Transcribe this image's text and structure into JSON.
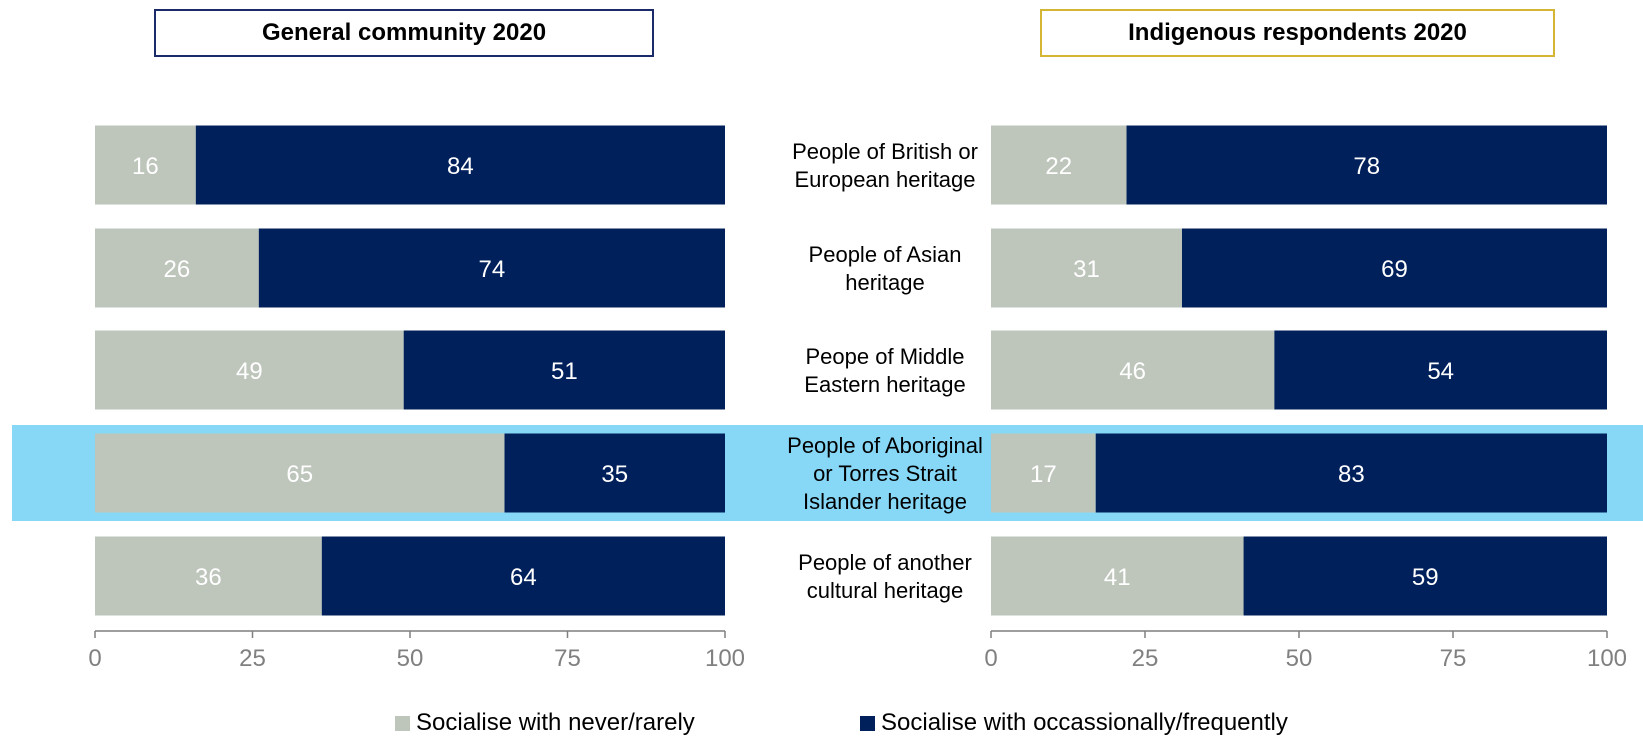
{
  "colors": {
    "never_rarely": "#bec6bc",
    "occasionally_frequently": "#00205b",
    "highlight": "#87d8f7",
    "left_title_border": "#1b2a6b",
    "right_title_border": "#d4b634",
    "axis": "#7f7f7f",
    "tick_label": "#808080"
  },
  "titles": {
    "left": "General community 2020",
    "right": "Indigenous respondents 2020"
  },
  "legend": {
    "never_rarely": "Socialise with never/rarely",
    "occasionally_frequently": "Socialise with occassionally/frequently"
  },
  "chart_data": [
    {
      "type": "bar",
      "orientation": "horizontal",
      "stacked": true,
      "title": "General community 2020",
      "categories": [
        "People of British or European heritage",
        "People of Asian heritage",
        "Peope of Middle Eastern heritage",
        "People of Aboriginal or Torres Strait Islander heritage",
        "People of another cultural heritage"
      ],
      "series": [
        {
          "name": "Socialise with never/rarely",
          "values": [
            16,
            26,
            49,
            65,
            36
          ]
        },
        {
          "name": "Socialise with occassionally/frequently",
          "values": [
            84,
            74,
            51,
            35,
            64
          ]
        }
      ],
      "xlim": [
        0,
        100
      ],
      "xticks": [
        "0",
        "25",
        "50",
        "75",
        "100"
      ],
      "highlighted_category": 3,
      "legend_position": "bottom",
      "grid": false
    },
    {
      "type": "bar",
      "orientation": "horizontal",
      "stacked": true,
      "title": "Indigenous respondents 2020",
      "categories": [
        "People of British or European heritage",
        "People of Asian heritage",
        "Peope of Middle Eastern heritage",
        "People of Aboriginal or Torres Strait Islander heritage",
        "People of another cultural heritage"
      ],
      "category_label_lines": [
        [
          "People of British or",
          "European heritage"
        ],
        [
          "People of Asian",
          "heritage"
        ],
        [
          "Peope of Middle",
          "Eastern heritage"
        ],
        [
          "People of Aboriginal",
          "or Torres Strait",
          "Islander heritage"
        ],
        [
          "People of another",
          "cultural heritage"
        ]
      ],
      "series": [
        {
          "name": "Socialise with never/rarely",
          "values": [
            22,
            31,
            46,
            17,
            41
          ]
        },
        {
          "name": "Socialise with occassionally/frequently",
          "values": [
            78,
            69,
            54,
            83,
            59
          ]
        }
      ],
      "xlim": [
        0,
        100
      ],
      "xticks": [
        "0",
        "25",
        "50",
        "75",
        "100"
      ],
      "highlighted_category": 3,
      "legend_position": "bottom",
      "grid": false
    }
  ]
}
